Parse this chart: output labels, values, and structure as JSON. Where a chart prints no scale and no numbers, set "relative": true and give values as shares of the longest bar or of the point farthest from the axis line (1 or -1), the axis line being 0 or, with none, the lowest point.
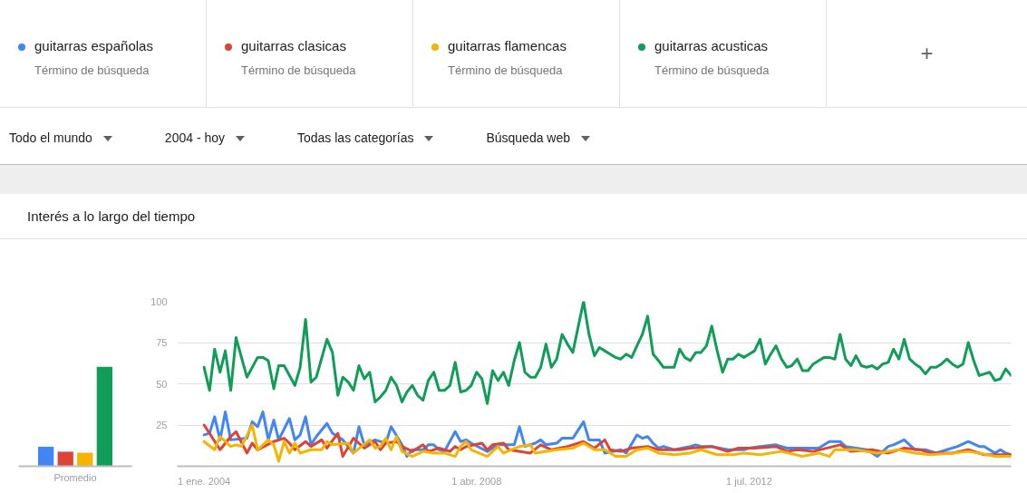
{
  "chart_data": [
    {
      "type": "bar",
      "relative": true,
      "xlabel": "Promedio",
      "categories": [
        null,
        null,
        null,
        null
      ],
      "values": [
        0.2,
        0.15,
        0.14,
        1
      ],
      "colors": [
        "#4285f4",
        "#db4437",
        "#f4b400",
        "#0f9d58"
      ]
    },
    {
      "type": "line",
      "title": "Interés a lo largo del tiempo",
      "legend": "top",
      "grid": "y",
      "marker": "none",
      "line_style": "solid",
      "annotations": [
        "Término de búsqueda",
        "Término de búsqueda",
        "Término de búsqueda",
        "Término de búsqueda",
        "+",
        "Todo el mundo",
        "2004 - hoy",
        "Todas las categorías",
        "Búsqueda web"
      ],
      "xlim": [
        "2003-08",
        "2016-08"
      ],
      "xticks": [
        {
          "value": "2004-01-01",
          "label": "1 ene. 2004"
        },
        {
          "value": "2008-04-01",
          "label": "1 abr. 2008"
        },
        {
          "value": "2012-07-01",
          "label": "1 jul. 2012"
        }
      ],
      "ylim": [
        0,
        100
      ],
      "yticks": [
        25,
        50,
        75,
        100
      ],
      "series": [
        {
          "name": "guitarras españolas",
          "color": "#4285f4",
          "x": [
            "2004-01",
            "2004-02",
            "2004-03",
            "2004-04",
            "2004-05",
            "2004-06",
            "2004-09",
            "2004-10",
            "2004-11",
            "2004-12",
            "2005-01",
            "2005-02",
            "2005-03",
            "2005-05",
            "2005-06",
            "2005-07",
            "2005-08",
            "2005-09",
            "2005-10",
            "2005-12",
            "2006-01",
            "2006-03",
            "2006-05",
            "2006-06",
            "2006-07",
            "2006-09",
            "2006-11",
            "2006-12",
            "2007-02",
            "2007-03",
            "2007-04",
            "2007-06",
            "2007-07",
            "2007-08",
            "2007-09",
            "2007-10",
            "2007-12",
            "2008-01",
            "2008-02",
            "2008-03",
            "2008-06",
            "2008-08",
            "2008-11",
            "2008-12",
            "2009-01",
            "2009-03",
            "2009-04",
            "2009-05",
            "2009-07",
            "2009-08",
            "2009-10",
            "2009-12",
            "2010-01",
            "2010-03",
            "2010-04",
            "2010-07",
            "2010-08",
            "2010-10",
            "2010-11",
            "2010-12",
            "2011-01",
            "2011-02",
            "2011-03",
            "2011-05",
            "2011-08",
            "2011-09",
            "2011-10",
            "2011-12",
            "2012-03",
            "2012-06",
            "2012-07",
            "2012-09",
            "2012-12",
            "2013-02",
            "2013-06",
            "2013-08",
            "2013-10",
            "2013-12",
            "2014-01",
            "2014-05",
            "2014-07",
            "2014-09",
            "2014-10",
            "2014-12",
            "2015-02",
            "2015-04",
            "2015-06",
            "2015-08",
            "2015-10",
            "2015-12",
            "2016-02",
            "2016-03",
            "2016-05",
            "2016-06",
            "2016-07",
            "2016-08"
          ],
          "values": [
            19,
            20,
            30,
            16,
            33,
            16,
            17,
            27,
            24,
            33,
            16,
            28,
            16,
            29,
            16,
            19,
            30,
            13,
            18,
            26,
            20,
            16,
            8,
            24,
            13,
            16,
            14,
            24,
            13,
            6,
            10,
            10,
            13,
            13,
            10,
            9,
            21,
            15,
            16,
            14,
            9,
            13,
            13,
            24,
            12,
            14,
            16,
            13,
            14,
            17,
            17,
            27,
            16,
            16,
            8,
            10,
            8,
            19,
            17,
            18,
            14,
            11,
            12,
            10,
            12,
            13,
            12,
            12,
            10,
            10,
            11,
            12,
            13,
            11,
            11,
            11,
            15,
            15,
            12,
            10,
            6,
            12,
            13,
            16,
            10,
            10,
            8,
            10,
            12,
            15,
            12,
            12,
            8,
            10,
            8,
            7
          ]
        },
        {
          "name": "guitarras clasicas",
          "color": "#db4437",
          "x": [
            "2004-01",
            "2004-02",
            "2004-04",
            "2004-06",
            "2004-07",
            "2004-09",
            "2004-10",
            "2004-11",
            "2005-02",
            "2005-04",
            "2005-05",
            "2005-06",
            "2005-08",
            "2005-09",
            "2005-11",
            "2005-12",
            "2006-02",
            "2006-03",
            "2006-05",
            "2006-07",
            "2006-09",
            "2006-10",
            "2006-11",
            "2007-01",
            "2007-02",
            "2007-04",
            "2007-06",
            "2007-07",
            "2007-09",
            "2007-11",
            "2007-12",
            "2008-01",
            "2008-02",
            "2008-05",
            "2008-06",
            "2008-07",
            "2008-09",
            "2008-10",
            "2009-02",
            "2009-04",
            "2009-06",
            "2009-09",
            "2009-12",
            "2010-02",
            "2010-04",
            "2010-05",
            "2010-07",
            "2010-09",
            "2010-12",
            "2011-02",
            "2011-04",
            "2011-06",
            "2011-08",
            "2011-12",
            "2012-03",
            "2012-05",
            "2012-08",
            "2012-12",
            "2013-02",
            "2013-04",
            "2013-07",
            "2013-12",
            "2014-02",
            "2014-06",
            "2014-09",
            "2014-12",
            "2015-03",
            "2015-05",
            "2015-09",
            "2015-12",
            "2016-03",
            "2016-05",
            "2016-08"
          ],
          "values": [
            25,
            20,
            10,
            18,
            21,
            8,
            14,
            10,
            15,
            17,
            14,
            10,
            15,
            12,
            16,
            11,
            20,
            6,
            17,
            11,
            15,
            10,
            14,
            15,
            12,
            9,
            13,
            9,
            11,
            9,
            12,
            10,
            12,
            14,
            10,
            13,
            14,
            10,
            8,
            13,
            10,
            12,
            15,
            11,
            16,
            10,
            9,
            11,
            12,
            10,
            10,
            10,
            11,
            12,
            9,
            11,
            11,
            12,
            9,
            10,
            9,
            13,
            9,
            10,
            8,
            11,
            10,
            8,
            8,
            10,
            7,
            7,
            7
          ]
        },
        {
          "name": "guitarras flamencas",
          "color": "#f4b400",
          "x": [
            "2004-01",
            "2004-03",
            "2004-04",
            "2004-06",
            "2004-07",
            "2004-08",
            "2004-10",
            "2004-11",
            "2005-01",
            "2005-02",
            "2005-03",
            "2005-04",
            "2005-05",
            "2005-06",
            "2005-07",
            "2005-09",
            "2005-11",
            "2005-12",
            "2006-01",
            "2006-04",
            "2006-05",
            "2006-08",
            "2006-09",
            "2006-10",
            "2006-11",
            "2006-12",
            "2007-01",
            "2007-02",
            "2007-04",
            "2007-06",
            "2007-08",
            "2007-10",
            "2007-12",
            "2008-01",
            "2008-02",
            "2008-03",
            "2008-06",
            "2008-08",
            "2008-09",
            "2008-12",
            "2009-02",
            "2009-03",
            "2009-07",
            "2009-10",
            "2009-12",
            "2010-02",
            "2010-04",
            "2010-06",
            "2010-08",
            "2010-10",
            "2010-12",
            "2011-02",
            "2011-05",
            "2011-08",
            "2011-10",
            "2012-01",
            "2012-04",
            "2012-06",
            "2012-09",
            "2013-01",
            "2013-05",
            "2013-08",
            "2013-10",
            "2013-11",
            "2014-03",
            "2014-07",
            "2014-11",
            "2015-02",
            "2015-05",
            "2015-09",
            "2015-12",
            "2016-02",
            "2016-05",
            "2016-07",
            "2016-08"
          ],
          "values": [
            15,
            10,
            18,
            12,
            13,
            12,
            25,
            10,
            16,
            13,
            3,
            15,
            8,
            14,
            8,
            10,
            10,
            15,
            13,
            14,
            8,
            16,
            11,
            12,
            17,
            10,
            18,
            9,
            6,
            9,
            8,
            8,
            6,
            12,
            15,
            10,
            6,
            12,
            8,
            12,
            13,
            8,
            10,
            11,
            14,
            10,
            10,
            6,
            6,
            10,
            11,
            8,
            7,
            8,
            10,
            7,
            7,
            8,
            7,
            9,
            6,
            8,
            6,
            10,
            10,
            8,
            10,
            8,
            7,
            8,
            9,
            8,
            6,
            6,
            6
          ]
        },
        {
          "name": "guitarras acusticas",
          "color": "#0f9d58",
          "x": [
            "2004-01",
            "2004-02",
            "2004-03",
            "2004-04",
            "2004-05",
            "2004-06",
            "2004-07",
            "2004-09",
            "2004-11",
            "2004-12",
            "2005-01",
            "2005-02",
            "2005-03",
            "2005-04",
            "2005-06",
            "2005-07",
            "2005-08",
            "2005-09",
            "2005-10",
            "2005-12",
            "2006-01",
            "2006-02",
            "2006-03",
            "2006-04",
            "2006-05",
            "2006-06",
            "2006-07",
            "2006-08",
            "2006-09",
            "2006-10",
            "2006-11",
            "2006-12",
            "2007-01",
            "2007-02",
            "2007-03",
            "2007-04",
            "2007-05",
            "2007-06",
            "2007-07",
            "2007-08",
            "2007-09",
            "2007-10",
            "2007-11",
            "2007-12",
            "2008-01",
            "2008-02",
            "2008-03",
            "2008-04",
            "2008-05",
            "2008-06",
            "2008-07",
            "2008-08",
            "2008-09",
            "2008-10",
            "2008-11",
            "2008-12",
            "2009-01",
            "2009-02",
            "2009-03",
            "2009-04",
            "2009-05",
            "2009-06",
            "2009-07",
            "2009-08",
            "2009-09",
            "2009-10",
            "2009-12",
            "2010-01",
            "2010-02",
            "2010-03",
            "2010-04",
            "2010-05",
            "2010-06",
            "2010-07",
            "2010-08",
            "2010-09",
            "2010-10",
            "2010-11",
            "2010-12",
            "2011-01",
            "2011-02",
            "2011-03",
            "2011-04",
            "2011-05",
            "2011-06",
            "2011-07",
            "2011-08",
            "2011-09",
            "2011-10",
            "2011-11",
            "2011-12",
            "2012-01",
            "2012-02",
            "2012-03",
            "2012-04",
            "2012-05",
            "2012-06",
            "2012-07",
            "2012-08",
            "2012-09",
            "2012-10",
            "2012-11",
            "2012-12",
            "2013-01",
            "2013-02",
            "2013-03",
            "2013-04",
            "2013-05",
            "2013-06",
            "2013-07",
            "2013-08",
            "2013-09",
            "2013-10",
            "2013-11",
            "2013-12",
            "2014-01",
            "2014-02",
            "2014-03",
            "2014-04",
            "2014-05",
            "2014-06",
            "2014-07",
            "2014-08",
            "2014-09",
            "2014-10",
            "2014-11",
            "2014-12",
            "2015-01",
            "2015-02",
            "2015-03",
            "2015-04",
            "2015-05",
            "2015-06",
            "2015-07",
            "2015-08",
            "2015-09",
            "2015-10",
            "2015-11",
            "2015-12",
            "2016-01",
            "2016-02",
            "2016-03",
            "2016-04",
            "2016-05",
            "2016-06",
            "2016-07",
            "2016-08"
          ],
          "values": [
            60,
            46,
            71,
            57,
            70,
            46,
            78,
            54,
            66,
            66,
            64,
            47,
            61,
            61,
            49,
            60,
            89,
            51,
            54,
            77,
            69,
            43,
            54,
            51,
            46,
            61,
            53,
            57,
            39,
            42,
            46,
            54,
            49,
            39,
            45,
            49,
            43,
            40,
            52,
            57,
            46,
            46,
            49,
            63,
            45,
            46,
            49,
            57,
            53,
            38,
            58,
            52,
            57,
            49,
            64,
            75,
            57,
            54,
            54,
            60,
            74,
            60,
            65,
            80,
            74,
            69,
            100,
            80,
            67,
            72,
            70,
            68,
            66,
            65,
            68,
            66,
            73,
            80,
            91,
            68,
            64,
            60,
            60,
            60,
            71,
            66,
            64,
            69,
            69,
            73,
            85,
            70,
            57,
            65,
            65,
            68,
            66,
            68,
            70,
            77,
            62,
            68,
            73,
            65,
            60,
            61,
            65,
            58,
            58,
            62,
            64,
            66,
            66,
            65,
            80,
            65,
            61,
            67,
            61,
            60,
            61,
            59,
            62,
            63,
            71,
            65,
            77,
            65,
            62,
            60,
            56,
            60,
            60,
            62,
            65,
            62,
            60,
            62,
            75,
            64,
            55,
            56,
            57,
            52,
            53,
            59,
            55
          ]
        }
      ]
    }
  ]
}
